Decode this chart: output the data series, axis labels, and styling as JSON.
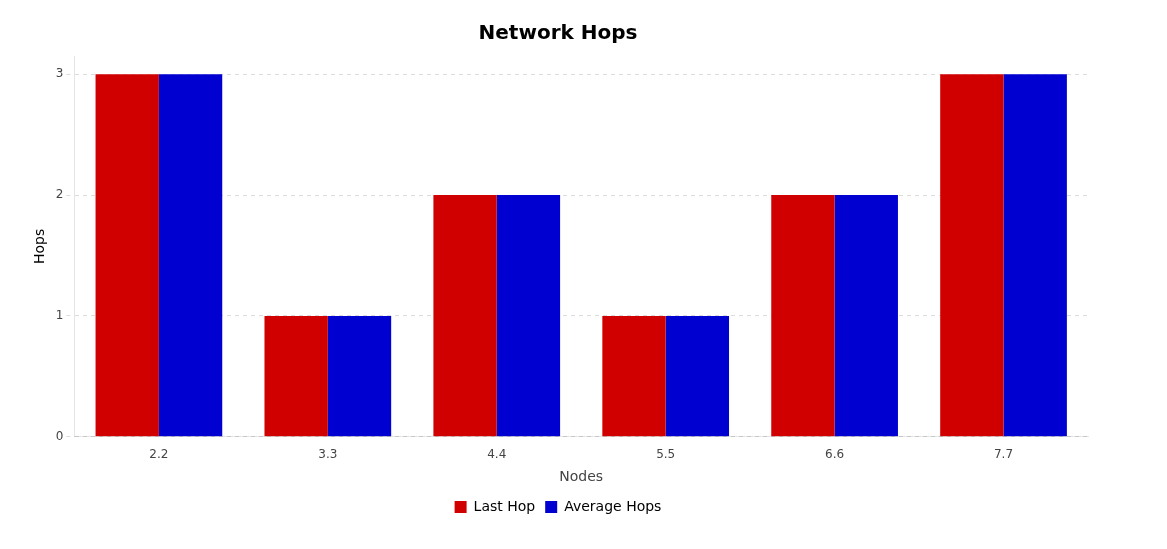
{
  "chart_data": {
    "type": "bar",
    "title": "Network Hops",
    "xlabel": "Nodes",
    "ylabel": "Hops",
    "categories": [
      "2.2",
      "3.3",
      "4.4",
      "5.5",
      "6.6",
      "7.7"
    ],
    "series": [
      {
        "name": "Last Hop",
        "color": "#d00000",
        "values": [
          3,
          1,
          2,
          1,
          2,
          3
        ]
      },
      {
        "name": "Average Hops",
        "color": "#0000d0",
        "values": [
          3,
          1,
          2,
          1,
          2,
          3
        ]
      }
    ],
    "ylim": [
      0,
      3.15
    ],
    "yticks": [
      0,
      1,
      2,
      3
    ],
    "grid": "y",
    "legend": "bottom"
  }
}
